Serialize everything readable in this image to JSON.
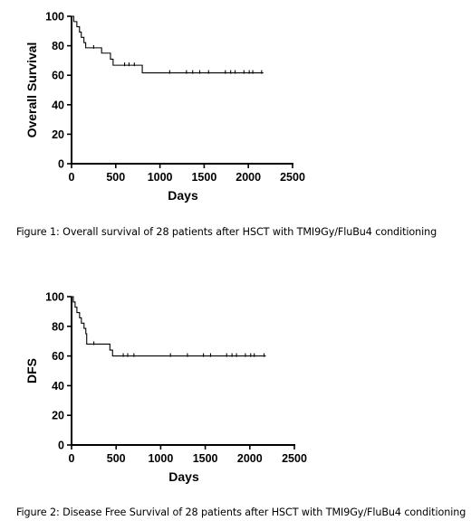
{
  "captions": [
    "Figure 1: Overall survival of 28 patients after HSCT with TMI9Gy/FluBu4 conditioning",
    "Figure 2: Disease Free Survival of 28 patients after HSCT with TMI9Gy/FluBu4 conditioning"
  ],
  "chart_data": [
    {
      "type": "line",
      "title": "",
      "xlabel": "Days",
      "ylabel": "Overall Survival",
      "xlim": [
        0,
        2500
      ],
      "ylim": [
        0,
        100
      ],
      "xticks": [
        0,
        500,
        1000,
        1500,
        2000,
        2500
      ],
      "yticks": [
        0,
        20,
        40,
        60,
        80,
        100
      ],
      "grid": false,
      "steps": [
        [
          0,
          100
        ],
        [
          25,
          96.4
        ],
        [
          60,
          92.9
        ],
        [
          90,
          89.3
        ],
        [
          110,
          85.7
        ],
        [
          140,
          82.1
        ],
        [
          160,
          78.6
        ],
        [
          340,
          75
        ],
        [
          440,
          70.9
        ],
        [
          470,
          66.8
        ],
        [
          800,
          61.6
        ],
        [
          2170,
          61.6
        ]
      ],
      "censored": [
        [
          250,
          78.6
        ],
        [
          600,
          66.8
        ],
        [
          650,
          66.8
        ],
        [
          710,
          66.8
        ],
        [
          1110,
          61.6
        ],
        [
          1300,
          61.6
        ],
        [
          1370,
          61.6
        ],
        [
          1450,
          61.6
        ],
        [
          1550,
          61.6
        ],
        [
          1740,
          61.6
        ],
        [
          1800,
          61.6
        ],
        [
          1850,
          61.6
        ],
        [
          1950,
          61.6
        ],
        [
          2010,
          61.6
        ],
        [
          2050,
          61.6
        ],
        [
          2150,
          61.6
        ]
      ]
    },
    {
      "type": "line",
      "title": "",
      "xlabel": "Days",
      "ylabel": "DFS",
      "xlim": [
        0,
        2500
      ],
      "ylim": [
        0,
        100
      ],
      "xticks": [
        0,
        500,
        1000,
        1500,
        2000,
        2500
      ],
      "yticks": [
        0,
        20,
        40,
        60,
        80,
        100
      ],
      "grid": false,
      "steps": [
        [
          0,
          100
        ],
        [
          20,
          96.4
        ],
        [
          40,
          92.9
        ],
        [
          60,
          89.3
        ],
        [
          90,
          85.7
        ],
        [
          110,
          82.1
        ],
        [
          140,
          78.6
        ],
        [
          160,
          75
        ],
        [
          170,
          68
        ],
        [
          430,
          64
        ],
        [
          460,
          60
        ],
        [
          2180,
          60
        ]
      ],
      "censored": [
        [
          250,
          68
        ],
        [
          580,
          60
        ],
        [
          630,
          60
        ],
        [
          700,
          60
        ],
        [
          1110,
          60
        ],
        [
          1300,
          60
        ],
        [
          1480,
          60
        ],
        [
          1560,
          60
        ],
        [
          1740,
          60
        ],
        [
          1800,
          60
        ],
        [
          1850,
          60
        ],
        [
          1950,
          60
        ],
        [
          2010,
          60
        ],
        [
          2050,
          60
        ],
        [
          2160,
          60
        ]
      ]
    }
  ]
}
